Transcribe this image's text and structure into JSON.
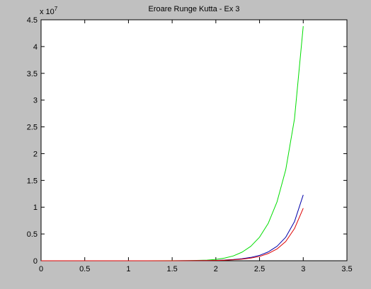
{
  "chart_data": {
    "type": "line",
    "title": "Eroare Runge Kutta - Ex 3",
    "xlabel": "",
    "ylabel": "",
    "exponent_label": {
      "base": "x 10",
      "power": "7"
    },
    "xlim": [
      0,
      3.5
    ],
    "ylim": [
      0,
      45000000
    ],
    "x_ticks": [
      0,
      0.5,
      1,
      1.5,
      2,
      2.5,
      3,
      3.5
    ],
    "x_tick_labels": [
      "0",
      "0.5",
      "1",
      "1.5",
      "2",
      "2.5",
      "3",
      "3.5"
    ],
    "y_ticks": [
      0,
      5000000,
      10000000,
      15000000,
      20000000,
      25000000,
      30000000,
      35000000,
      40000000,
      45000000
    ],
    "y_tick_labels": [
      "0",
      "0.5",
      "1",
      "1.5",
      "2",
      "2.5",
      "3",
      "3.5",
      "4",
      "4.5"
    ],
    "grid": false,
    "legend": "none",
    "series": [
      {
        "color": "#00dd00",
        "x": [
          0,
          0.3,
          0.6,
          0.9,
          1.2,
          1.5,
          1.7,
          1.9,
          2.0,
          2.1,
          2.2,
          2.3,
          2.4,
          2.5,
          2.6,
          2.7,
          2.8,
          2.9,
          3.0
        ],
        "y": [
          0,
          0,
          0,
          0,
          0,
          10000,
          40000,
          120000,
          250000,
          500000,
          900000,
          1600000,
          2700000,
          4400000,
          7000000,
          11000000,
          17000000,
          26500000,
          43800000
        ]
      },
      {
        "color": "#0000aa",
        "x": [
          0,
          0.3,
          0.6,
          0.9,
          1.2,
          1.5,
          1.7,
          1.9,
          2.0,
          2.1,
          2.2,
          2.3,
          2.4,
          2.5,
          2.6,
          2.7,
          2.8,
          2.9,
          3.0
        ],
        "y": [
          0,
          0,
          0,
          0,
          0,
          5000,
          15000,
          40000,
          70000,
          130000,
          230000,
          380000,
          620000,
          1000000,
          1650000,
          2700000,
          4400000,
          7300000,
          12300000
        ]
      },
      {
        "color": "#dd0000",
        "x": [
          0,
          0.3,
          0.6,
          0.9,
          1.2,
          1.5,
          1.7,
          1.9,
          2.0,
          2.1,
          2.2,
          2.3,
          2.4,
          2.5,
          2.6,
          2.7,
          2.8,
          2.9,
          3.0
        ],
        "y": [
          0,
          0,
          0,
          0,
          0,
          4000,
          12000,
          32000,
          55000,
          100000,
          180000,
          300000,
          500000,
          800000,
          1350000,
          2200000,
          3600000,
          6000000,
          9800000
        ]
      }
    ]
  }
}
